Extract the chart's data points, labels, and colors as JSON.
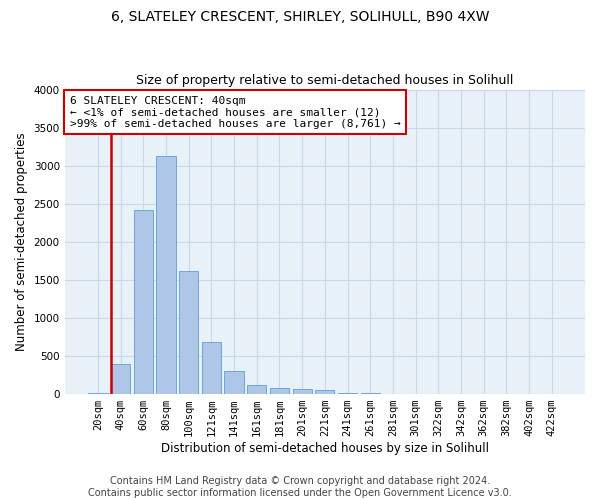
{
  "title_line1": "6, SLATELEY CRESCENT, SHIRLEY, SOLIHULL, B90 4XW",
  "title_line2": "Size of property relative to semi-detached houses in Solihull",
  "xlabel": "Distribution of semi-detached houses by size in Solihull",
  "ylabel": "Number of semi-detached properties",
  "annotation_title": "6 SLATELEY CRESCENT: 40sqm",
  "annotation_line2": "← <1% of semi-detached houses are smaller (12)",
  "annotation_line3": ">99% of semi-detached houses are larger (8,761) →",
  "footer_line1": "Contains HM Land Registry data © Crown copyright and database right 2024.",
  "footer_line2": "Contains public sector information licensed under the Open Government Licence v3.0.",
  "bar_labels": [
    "20sqm",
    "40sqm",
    "60sqm",
    "80sqm",
    "100sqm",
    "121sqm",
    "141sqm",
    "161sqm",
    "181sqm",
    "201sqm",
    "221sqm",
    "241sqm",
    "261sqm",
    "281sqm",
    "301sqm",
    "322sqm",
    "342sqm",
    "362sqm",
    "382sqm",
    "402sqm",
    "422sqm"
  ],
  "bar_values": [
    12,
    390,
    2420,
    3130,
    1620,
    680,
    300,
    120,
    80,
    70,
    50,
    10,
    8,
    6,
    4,
    3,
    2,
    2,
    1,
    1,
    1
  ],
  "bar_color": "#aec6e8",
  "bar_edge_color": "#5a9fd4",
  "highlight_bar_index": 1,
  "highlight_color": "#cc0000",
  "annotation_box_color": "#cc0000",
  "ylim": [
    0,
    4000
  ],
  "yticks": [
    0,
    500,
    1000,
    1500,
    2000,
    2500,
    3000,
    3500,
    4000
  ],
  "grid_color": "#c8d8ea",
  "background_color": "#e8f0f8",
  "title_fontsize": 10,
  "subtitle_fontsize": 9,
  "axis_label_fontsize": 8.5,
  "tick_fontsize": 7.5,
  "footer_fontsize": 7
}
